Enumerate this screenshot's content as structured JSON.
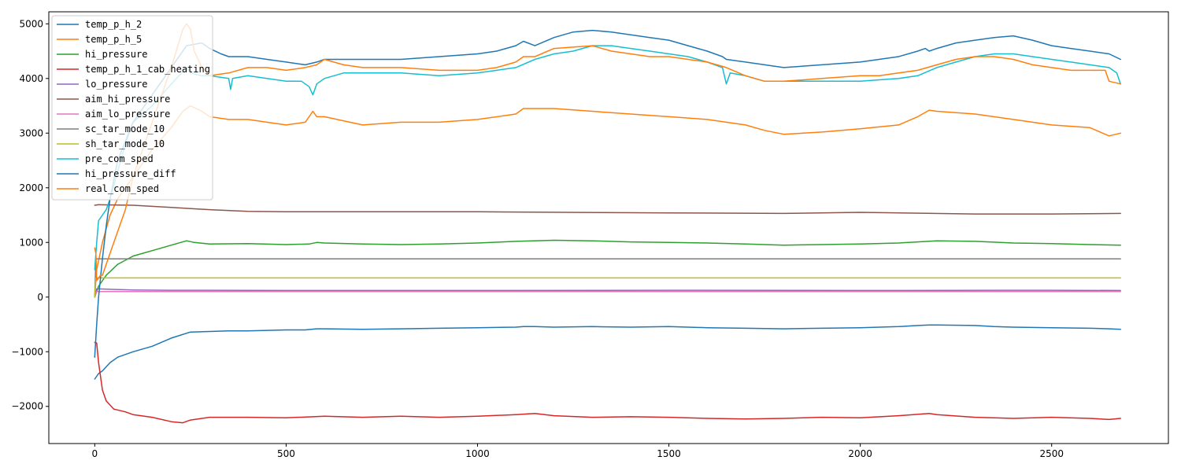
{
  "chart_data": {
    "type": "line",
    "title": "",
    "xlabel": "",
    "ylabel": "",
    "xlim": [
      -120,
      2805
    ],
    "ylim": [
      -2680,
      5220
    ],
    "xticks": [
      0,
      500,
      1000,
      1500,
      2000,
      2500
    ],
    "yticks": [
      -2000,
      -1000,
      0,
      1000,
      2000,
      3000,
      4000,
      5000
    ],
    "grid": false,
    "legend_position": "top-left",
    "series": [
      {
        "name": "temp_p_h_2",
        "color": "#1f77b4",
        "x": [
          0,
          5,
          10,
          20,
          40,
          60,
          100,
          150,
          200,
          250,
          300,
          350,
          400,
          450,
          500,
          550,
          580,
          600,
          700,
          800,
          900,
          1000,
          1100,
          1120,
          1150,
          1200,
          1300,
          1400,
          1500,
          1600,
          1700,
          1800,
          1900,
          2000,
          2100,
          2150,
          2180,
          2200,
          2300,
          2350,
          2400,
          2500,
          2600,
          2650,
          2680
        ],
        "y": [
          -1500,
          -1450,
          -1400,
          -1350,
          -1200,
          -1100,
          -1000,
          -900,
          -750,
          -640,
          -630,
          -620,
          -620,
          -610,
          -600,
          -600,
          -580,
          -580,
          -590,
          -580,
          -570,
          -560,
          -550,
          -540,
          -540,
          -550,
          -540,
          -550,
          -540,
          -560,
          -570,
          -580,
          -570,
          -560,
          -540,
          -520,
          -510,
          -510,
          -520,
          -540,
          -550,
          -560,
          -570,
          -580,
          -590
        ]
      },
      {
        "name": "temp_p_h_5",
        "color": "#ff7f0e",
        "x": [
          0,
          5,
          20,
          40,
          60,
          100,
          150,
          200,
          230,
          250,
          280,
          300,
          350,
          400,
          450,
          500,
          550,
          570,
          580,
          600,
          700,
          800,
          900,
          1000,
          1100,
          1120,
          1150,
          1200,
          1300,
          1400,
          1500,
          1600,
          1700,
          1750,
          1800,
          1900,
          2000,
          2100,
          2150,
          2180,
          2200,
          2300,
          2400,
          2500,
          2600,
          2650,
          2680
        ],
        "y": [
          0,
          500,
          1000,
          1500,
          1800,
          2200,
          2700,
          3100,
          3400,
          3500,
          3400,
          3300,
          3250,
          3250,
          3200,
          3150,
          3200,
          3400,
          3300,
          3300,
          3150,
          3200,
          3200,
          3250,
          3350,
          3450,
          3450,
          3450,
          3400,
          3350,
          3300,
          3250,
          3150,
          3050,
          2980,
          3020,
          3080,
          3150,
          3300,
          3420,
          3400,
          3350,
          3250,
          3150,
          3100,
          2950,
          3000
        ]
      },
      {
        "name": "hi_pressure",
        "color": "#2ca02c",
        "x": [
          0,
          10,
          30,
          60,
          100,
          150,
          200,
          240,
          260,
          300,
          400,
          500,
          560,
          580,
          600,
          700,
          800,
          900,
          1000,
          1100,
          1200,
          1300,
          1400,
          1500,
          1600,
          1700,
          1800,
          1900,
          2000,
          2100,
          2200,
          2300,
          2400,
          2500,
          2600,
          2680
        ],
        "y": [
          0,
          200,
          400,
          600,
          750,
          850,
          950,
          1030,
          1000,
          970,
          980,
          960,
          970,
          1000,
          990,
          970,
          960,
          970,
          990,
          1020,
          1040,
          1030,
          1010,
          1000,
          990,
          970,
          950,
          960,
          970,
          990,
          1030,
          1020,
          990,
          980,
          960,
          950
        ]
      },
      {
        "name": "temp_p_h_1_cab_heating",
        "color": "#d62728",
        "x": [
          0,
          5,
          10,
          20,
          30,
          50,
          80,
          100,
          150,
          200,
          230,
          250,
          300,
          400,
          500,
          600,
          700,
          800,
          900,
          1000,
          1100,
          1150,
          1200,
          1300,
          1400,
          1500,
          1600,
          1700,
          1800,
          1900,
          2000,
          2100,
          2180,
          2200,
          2300,
          2400,
          2500,
          2600,
          2650,
          2680
        ],
        "y": [
          -830,
          -840,
          -1200,
          -1700,
          -1900,
          -2050,
          -2100,
          -2150,
          -2200,
          -2280,
          -2300,
          -2250,
          -2200,
          -2200,
          -2210,
          -2180,
          -2200,
          -2180,
          -2200,
          -2180,
          -2150,
          -2130,
          -2170,
          -2200,
          -2190,
          -2200,
          -2220,
          -2230,
          -2220,
          -2200,
          -2210,
          -2170,
          -2130,
          -2150,
          -2200,
          -2220,
          -2200,
          -2220,
          -2240,
          -2220
        ]
      },
      {
        "name": "lo_pressure",
        "color": "#9467bd",
        "x": [
          0,
          5,
          50,
          100,
          200,
          300,
          500,
          1000,
          1500,
          2000,
          2500,
          2680
        ],
        "y": [
          0,
          150,
          140,
          130,
          125,
          125,
          120,
          120,
          125,
          120,
          125,
          120
        ]
      },
      {
        "name": "aim_hi_pressure",
        "color": "#8c564b",
        "x": [
          0,
          10,
          100,
          200,
          300,
          400,
          500,
          1000,
          1500,
          1800,
          2000,
          2300,
          2500,
          2680
        ],
        "y": [
          1680,
          1690,
          1680,
          1640,
          1600,
          1570,
          1560,
          1560,
          1540,
          1530,
          1550,
          1520,
          1520,
          1530
        ]
      },
      {
        "name": "aim_lo_pressure",
        "color": "#e377c2",
        "x": [
          0,
          5,
          100,
          500,
          1000,
          1500,
          2000,
          2500,
          2680
        ],
        "y": [
          0,
          100,
          100,
          100,
          100,
          100,
          100,
          100,
          100
        ]
      },
      {
        "name": "sc_tar_mode_10",
        "color": "#7f7f7f",
        "x": [
          0,
          3,
          100,
          1000,
          2000,
          2680
        ],
        "y": [
          0,
          700,
          700,
          700,
          700,
          700
        ]
      },
      {
        "name": "sh_tar_mode_10",
        "color": "#bcbd22",
        "x": [
          0,
          3,
          100,
          1000,
          2000,
          2680
        ],
        "y": [
          0,
          350,
          350,
          350,
          350,
          350
        ]
      },
      {
        "name": "pre_com_sped",
        "color": "#17becf",
        "x": [
          0,
          5,
          10,
          20,
          30,
          40,
          60,
          80,
          100,
          150,
          200,
          240,
          250,
          280,
          300,
          350,
          355,
          360,
          400,
          450,
          500,
          540,
          560,
          570,
          580,
          600,
          650,
          700,
          800,
          900,
          1000,
          1050,
          1100,
          1150,
          1200,
          1250,
          1300,
          1350,
          1400,
          1450,
          1500,
          1550,
          1600,
          1640,
          1650,
          1660,
          1700,
          1750,
          1800,
          1900,
          2000,
          2100,
          2150,
          2200,
          2250,
          2300,
          2350,
          2400,
          2450,
          2500,
          2550,
          2600,
          2650,
          2670,
          2680
        ],
        "y": [
          500,
          1000,
          1400,
          1500,
          1600,
          1800,
          2300,
          2800,
          3200,
          3500,
          3900,
          4200,
          4100,
          4050,
          4050,
          4000,
          3800,
          4000,
          4050,
          4000,
          3950,
          3950,
          3850,
          3700,
          3900,
          4000,
          4100,
          4100,
          4100,
          4050,
          4100,
          4150,
          4200,
          4350,
          4450,
          4500,
          4600,
          4600,
          4550,
          4500,
          4450,
          4400,
          4300,
          4200,
          3900,
          4100,
          4050,
          3950,
          3950,
          3950,
          3950,
          4000,
          4050,
          4200,
          4300,
          4400,
          4450,
          4450,
          4400,
          4350,
          4300,
          4250,
          4200,
          4100,
          3900
        ]
      },
      {
        "name": "hi_pressure_diff",
        "color": "#1f77b4",
        "x": [
          0,
          5,
          10,
          20,
          30,
          40,
          60,
          100,
          150,
          200,
          240,
          280,
          300,
          330,
          350,
          400,
          450,
          500,
          550,
          580,
          600,
          700,
          800,
          900,
          1000,
          1050,
          1100,
          1120,
          1150,
          1200,
          1250,
          1300,
          1350,
          1400,
          1450,
          1500,
          1550,
          1600,
          1640,
          1650,
          1700,
          1750,
          1800,
          1900,
          2000,
          2100,
          2150,
          2170,
          2180,
          2200,
          2250,
          2300,
          2350,
          2400,
          2450,
          2500,
          2550,
          2600,
          2650,
          2680
        ],
        "y": [
          -1100,
          -500,
          0,
          700,
          1300,
          1800,
          2500,
          3200,
          3700,
          4200,
          4600,
          4650,
          4550,
          4450,
          4400,
          4400,
          4350,
          4300,
          4250,
          4300,
          4350,
          4350,
          4350,
          4400,
          4450,
          4500,
          4600,
          4680,
          4600,
          4750,
          4850,
          4880,
          4850,
          4800,
          4750,
          4700,
          4600,
          4500,
          4400,
          4350,
          4300,
          4250,
          4200,
          4250,
          4300,
          4400,
          4500,
          4550,
          4500,
          4550,
          4650,
          4700,
          4750,
          4780,
          4700,
          4600,
          4550,
          4500,
          4450,
          4350
        ]
      },
      {
        "name": "real_com_sped",
        "color": "#ff7f0e",
        "x": [
          0,
          3,
          5,
          15,
          20,
          30,
          50,
          80,
          100,
          150,
          200,
          230,
          240,
          250,
          260,
          280,
          300,
          350,
          400,
          450,
          500,
          550,
          580,
          600,
          650,
          700,
          800,
          900,
          1000,
          1050,
          1100,
          1120,
          1150,
          1200,
          1300,
          1350,
          1400,
          1450,
          1500,
          1550,
          1600,
          1650,
          1700,
          1750,
          1800,
          1900,
          2000,
          2050,
          2100,
          2150,
          2200,
          2250,
          2300,
          2350,
          2400,
          2450,
          2500,
          2550,
          2600,
          2640,
          2650,
          2680
        ],
        "y": [
          900,
          800,
          300,
          400,
          400,
          600,
          1000,
          1600,
          2200,
          3200,
          4200,
          4900,
          5000,
          4900,
          4500,
          4200,
          4050,
          4100,
          4200,
          4200,
          4150,
          4200,
          4250,
          4350,
          4250,
          4200,
          4200,
          4150,
          4150,
          4200,
          4300,
          4400,
          4400,
          4550,
          4600,
          4500,
          4450,
          4400,
          4400,
          4350,
          4300,
          4200,
          4050,
          3950,
          3950,
          4000,
          4050,
          4050,
          4100,
          4150,
          4250,
          4350,
          4400,
          4400,
          4350,
          4250,
          4200,
          4150,
          4150,
          4150,
          3950,
          3900
        ]
      }
    ]
  }
}
